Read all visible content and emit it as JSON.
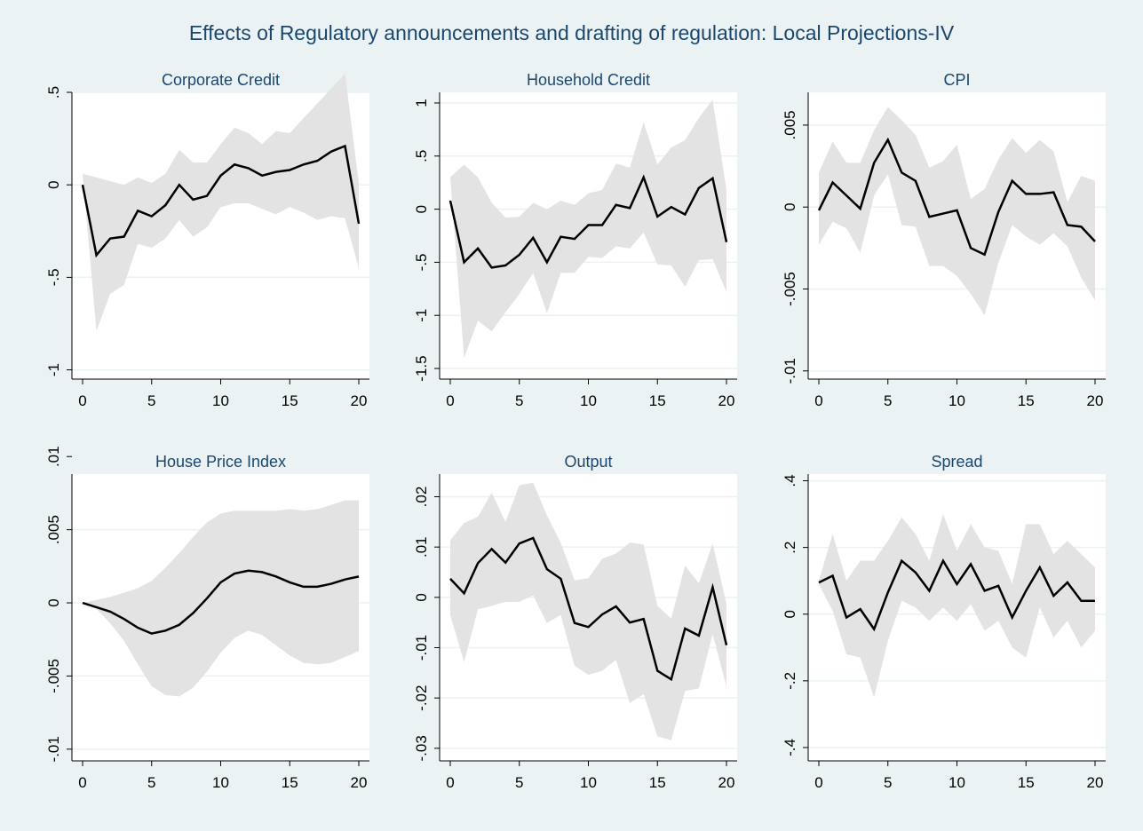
{
  "figure": {
    "title": "Effects of Regulatory announcements and drafting of regulation: Local Projections-IV"
  },
  "colors": {
    "background": "#eaf2f3",
    "plot_background": "#ffffff",
    "band": "#e3e3e3",
    "line": "#000000",
    "title": "#1a476f",
    "grid": "#eaf2f3"
  },
  "chart_data": [
    {
      "type": "line",
      "title": "Corporate Credit",
      "xlabel": "",
      "ylabel": "",
      "xlim": [
        0,
        20
      ],
      "ylim": [
        -1.05,
        0.5
      ],
      "xticks": [
        0,
        5,
        10,
        15,
        20
      ],
      "yticks": [
        -1,
        -0.5,
        0,
        0.5
      ],
      "yticklabels": [
        "-1",
        "-.5",
        "0",
        ".5"
      ],
      "grid": true,
      "x": [
        0,
        1,
        2,
        3,
        4,
        5,
        6,
        7,
        8,
        9,
        10,
        11,
        12,
        13,
        14,
        15,
        16,
        17,
        18,
        19,
        20
      ],
      "series": [
        {
          "values": [
            0,
            -0.38,
            -0.29,
            -0.28,
            -0.14,
            -0.17,
            -0.11,
            0,
            -0.08,
            -0.06,
            0.05,
            0.11,
            0.09,
            0.05,
            0.07,
            0.08,
            0.11,
            0.13,
            0.18,
            0.21,
            -0.21
          ]
        }
      ],
      "band": {
        "lower": [
          0.06,
          -0.79,
          -0.59,
          -0.54,
          -0.32,
          -0.34,
          -0.29,
          -0.19,
          -0.28,
          -0.23,
          -0.12,
          -0.1,
          -0.1,
          -0.13,
          -0.16,
          -0.12,
          -0.15,
          -0.19,
          -0.17,
          -0.18,
          -0.45
        ],
        "upper": [
          0.06,
          0.04,
          0.02,
          0,
          0.04,
          0.01,
          0.06,
          0.19,
          0.12,
          0.12,
          0.22,
          0.31,
          0.28,
          0.22,
          0.29,
          0.28,
          0.36,
          0.44,
          0.52,
          0.6,
          0.01
        ]
      }
    },
    {
      "type": "line",
      "title": "Household Credit",
      "xlabel": "",
      "ylabel": "",
      "xlim": [
        0,
        20
      ],
      "ylim": [
        -1.6,
        1.1
      ],
      "xticks": [
        0,
        5,
        10,
        15,
        20
      ],
      "yticks": [
        -1.5,
        -1,
        -0.5,
        0,
        0.5,
        1
      ],
      "yticklabels": [
        "-1.5",
        "-1",
        "-.5",
        "0",
        ".5",
        "1"
      ],
      "grid": true,
      "x": [
        0,
        1,
        2,
        3,
        4,
        5,
        6,
        7,
        8,
        9,
        10,
        11,
        12,
        13,
        14,
        15,
        16,
        17,
        18,
        19,
        20
      ],
      "series": [
        {
          "values": [
            0.08,
            -0.5,
            -0.37,
            -0.55,
            -0.53,
            -0.43,
            -0.27,
            -0.5,
            -0.26,
            -0.28,
            -0.15,
            -0.15,
            0.04,
            0.01,
            0.3,
            -0.07,
            0.02,
            -0.05,
            0.2,
            0.29,
            -0.31
          ]
        }
      ],
      "band": {
        "lower": [
          0.3,
          -1.4,
          -1.05,
          -1.15,
          -0.97,
          -0.8,
          -0.6,
          -0.98,
          -0.6,
          -0.6,
          -0.45,
          -0.46,
          -0.35,
          -0.37,
          -0.22,
          -0.52,
          -0.53,
          -0.73,
          -0.48,
          -0.47,
          -0.78
        ],
        "upper": [
          0.3,
          0.42,
          0.3,
          0.06,
          -0.08,
          -0.07,
          0.06,
          0,
          0.08,
          0.04,
          0.15,
          0.18,
          0.43,
          0.39,
          0.82,
          0.42,
          0.58,
          0.65,
          0.86,
          1.03,
          0.18
        ]
      }
    },
    {
      "type": "line",
      "title": "CPI",
      "xlabel": "",
      "ylabel": "",
      "xlim": [
        0,
        20
      ],
      "ylim": [
        -0.0105,
        0.007
      ],
      "xticks": [
        0,
        5,
        10,
        15,
        20
      ],
      "yticks": [
        -0.01,
        -0.005,
        0,
        0.005
      ],
      "yticklabels": [
        "-.01",
        "-.005",
        "0",
        ".005"
      ],
      "grid": true,
      "x": [
        0,
        1,
        2,
        3,
        4,
        5,
        6,
        7,
        8,
        9,
        10,
        11,
        12,
        13,
        14,
        15,
        16,
        17,
        18,
        19,
        20
      ],
      "series": [
        {
          "values": [
            -0.0002,
            0.0015,
            0.0007,
            -0.0001,
            0.0027,
            0.0041,
            0.0021,
            0.0016,
            -0.0006,
            -0.0004,
            -0.0002,
            -0.0025,
            -0.0029,
            -0.0003,
            0.0016,
            0.0008,
            0.0008,
            0.0009,
            -0.0011,
            -0.0012,
            -0.0021
          ]
        }
      ],
      "band": {
        "lower": [
          -0.0023,
          -0.0009,
          -0.0013,
          -0.0028,
          0.0007,
          0.002,
          -0.0011,
          -0.0012,
          -0.0036,
          -0.0036,
          -0.0042,
          -0.0053,
          -0.0066,
          -0.0034,
          -0.0011,
          -0.0018,
          -0.0023,
          -0.0016,
          -0.0024,
          -0.0043,
          -0.0057
        ],
        "upper": [
          0.0021,
          0.004,
          0.0027,
          0.0027,
          0.0047,
          0.0061,
          0.0053,
          0.0044,
          0.0024,
          0.0028,
          0.0038,
          0.0005,
          0.0011,
          0.0029,
          0.0042,
          0.0033,
          0.0041,
          0.0034,
          0.0003,
          0.0019,
          0.0016
        ]
      }
    },
    {
      "type": "line",
      "title": "House Price Index",
      "xlabel": "",
      "ylabel": "",
      "xlim": [
        0,
        20
      ],
      "ylim": [
        -0.0108,
        0.0088
      ],
      "xticks": [
        0,
        5,
        10,
        15,
        20
      ],
      "yticks": [
        -0.01,
        -0.005,
        0,
        0.005,
        0.01
      ],
      "yticklabels": [
        "-.01",
        "-.005",
        "0",
        ".005",
        ".01"
      ],
      "grid": true,
      "x": [
        0,
        1,
        2,
        3,
        4,
        5,
        6,
        7,
        8,
        9,
        10,
        11,
        12,
        13,
        14,
        15,
        16,
        17,
        18,
        19,
        20
      ],
      "series": [
        {
          "values": [
            0,
            -0.0003,
            -0.0006,
            -0.0011,
            -0.0017,
            -0.0021,
            -0.0019,
            -0.0015,
            -0.0007,
            0.0003,
            0.0014,
            0.002,
            0.0022,
            0.0021,
            0.0018,
            0.0014,
            0.0011,
            0.0011,
            0.0013,
            0.0016,
            0.0018
          ]
        }
      ],
      "band": {
        "lower": [
          0,
          -0.0004,
          -0.0014,
          -0.0026,
          -0.0042,
          -0.0057,
          -0.0063,
          -0.0064,
          -0.0058,
          -0.0047,
          -0.0034,
          -0.0024,
          -0.0019,
          -0.0022,
          -0.0029,
          -0.0036,
          -0.0041,
          -0.0042,
          -0.0041,
          -0.0037,
          -0.0033
        ],
        "upper": [
          0,
          0.0002,
          0.0004,
          0.0007,
          0.001,
          0.0015,
          0.0024,
          0.0034,
          0.0045,
          0.0055,
          0.0061,
          0.0063,
          0.0063,
          0.0063,
          0.0063,
          0.0064,
          0.0063,
          0.0064,
          0.0067,
          0.007,
          0.007
        ]
      }
    },
    {
      "type": "line",
      "title": "Output",
      "xlabel": "",
      "ylabel": "",
      "xlim": [
        0,
        20
      ],
      "ylim": [
        -0.0325,
        0.0245
      ],
      "xticks": [
        0,
        5,
        10,
        15,
        20
      ],
      "yticks": [
        -0.03,
        -0.02,
        -0.01,
        0,
        0.01,
        0.02
      ],
      "yticklabels": [
        "-.03",
        "-.02",
        "-.01",
        "0",
        ".01",
        ".02"
      ],
      "grid": true,
      "x": [
        0,
        1,
        2,
        3,
        4,
        5,
        6,
        7,
        8,
        9,
        10,
        11,
        12,
        13,
        14,
        15,
        16,
        17,
        18,
        19,
        20
      ],
      "series": [
        {
          "values": [
            0.0037,
            0.0008,
            0.0068,
            0.0096,
            0.0069,
            0.0107,
            0.0118,
            0.0056,
            0.0037,
            -0.0051,
            -0.0059,
            -0.0034,
            -0.0018,
            -0.005,
            -0.0043,
            -0.0146,
            -0.0163,
            -0.0062,
            -0.0076,
            0.002,
            -0.0095
          ]
        }
      ],
      "band": {
        "lower": [
          -0.0035,
          -0.0129,
          -0.0024,
          -0.0017,
          -0.0009,
          -0.0009,
          0.0004,
          -0.0051,
          -0.0035,
          -0.0136,
          -0.0154,
          -0.0146,
          -0.0124,
          -0.021,
          -0.0192,
          -0.0276,
          -0.0284,
          -0.0186,
          -0.0181,
          -0.0073,
          -0.0177
        ],
        "upper": [
          0.0113,
          0.0148,
          0.016,
          0.0208,
          0.015,
          0.0223,
          0.0228,
          0.0163,
          0.0108,
          0.0034,
          0.0038,
          0.0077,
          0.0087,
          0.0109,
          0.0105,
          -0.0017,
          -0.0042,
          0.0063,
          0.0028,
          0.0107,
          -0.0013
        ]
      }
    },
    {
      "type": "line",
      "title": "Spread",
      "xlabel": "",
      "ylabel": "",
      "xlim": [
        0,
        20
      ],
      "ylim": [
        -0.44,
        0.42
      ],
      "xticks": [
        0,
        5,
        10,
        15,
        20
      ],
      "yticks": [
        -0.4,
        -0.2,
        0,
        0.2,
        0.4
      ],
      "yticklabels": [
        "-.4",
        "-.2",
        "0",
        ".2",
        ".4"
      ],
      "grid": true,
      "x": [
        0,
        1,
        2,
        3,
        4,
        5,
        6,
        7,
        8,
        9,
        10,
        11,
        12,
        13,
        14,
        15,
        16,
        17,
        18,
        19,
        20
      ],
      "series": [
        {
          "values": [
            0.095,
            0.115,
            -0.01,
            0.015,
            -0.045,
            0.065,
            0.16,
            0.125,
            0.07,
            0.16,
            0.09,
            0.15,
            0.07,
            0.085,
            -0.01,
            0.07,
            0.14,
            0.055,
            0.095,
            0.04,
            0.04
          ]
        }
      ],
      "band": {
        "lower": [
          0.09,
          0.01,
          -0.12,
          -0.13,
          -0.25,
          -0.08,
          0.04,
          0.02,
          -0.02,
          0.02,
          -0.02,
          0.03,
          -0.05,
          -0.02,
          -0.1,
          -0.13,
          0.02,
          -0.07,
          -0.02,
          -0.1,
          -0.05
        ],
        "upper": [
          0.1,
          0.24,
          0.1,
          0.16,
          0.16,
          0.22,
          0.29,
          0.24,
          0.16,
          0.3,
          0.19,
          0.27,
          0.2,
          0.19,
          0.09,
          0.27,
          0.27,
          0.18,
          0.22,
          0.18,
          0.14
        ]
      }
    }
  ]
}
